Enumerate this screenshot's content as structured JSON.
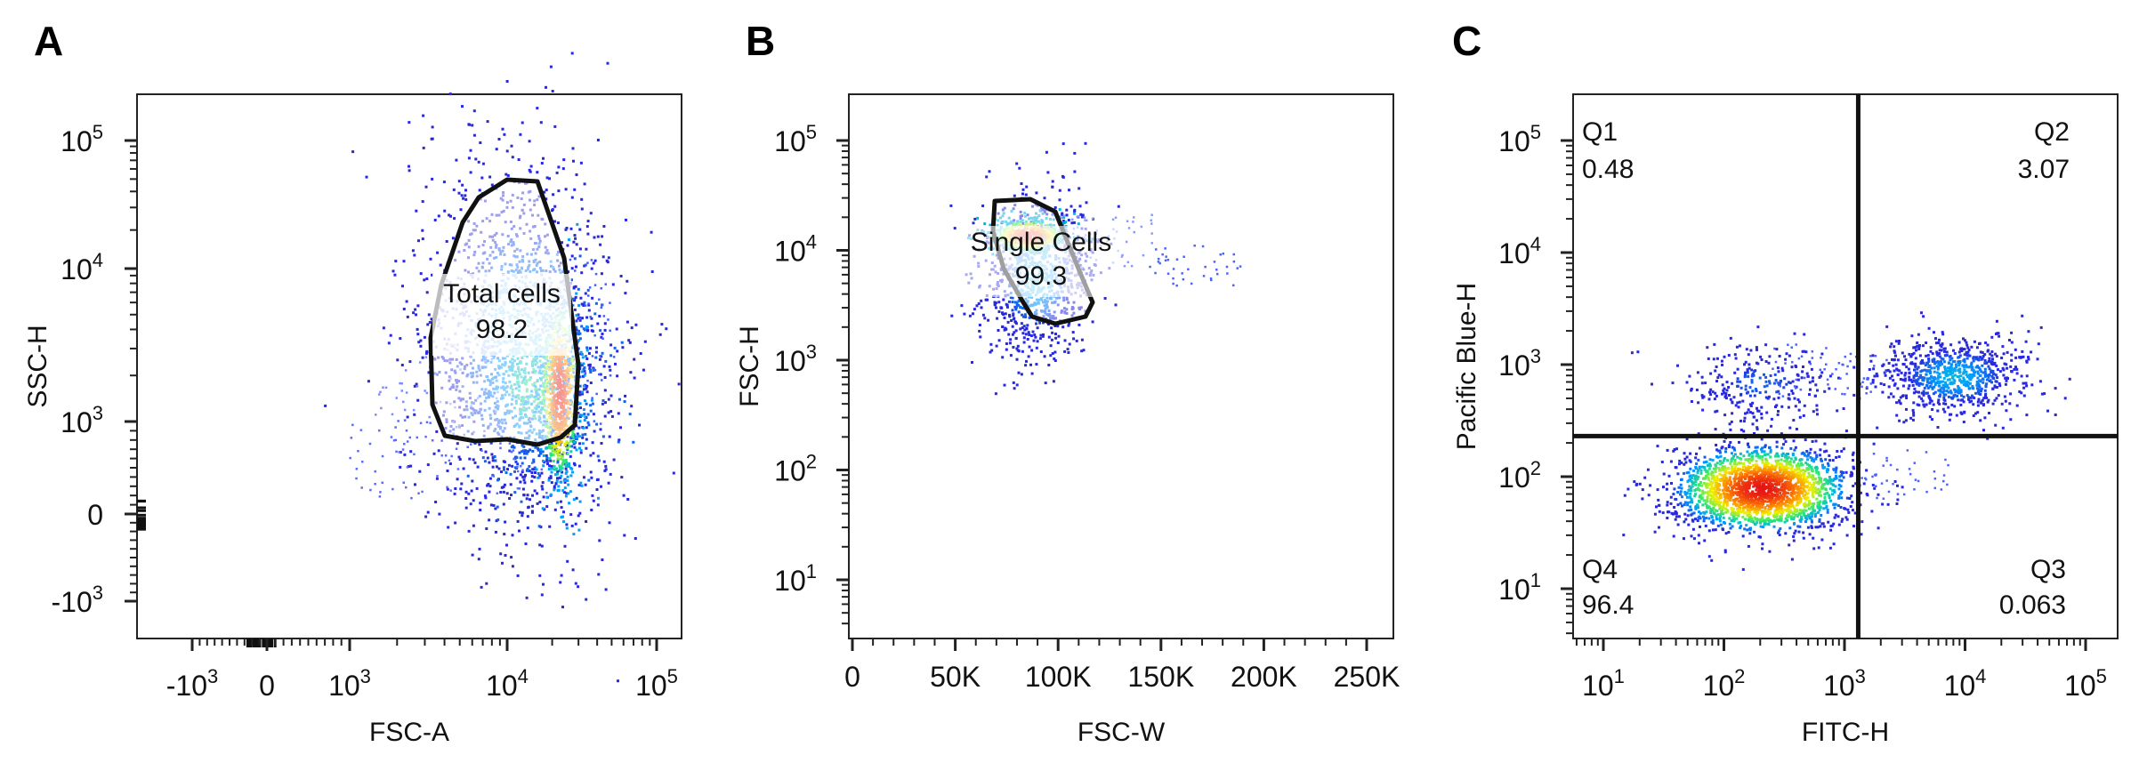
{
  "chart_data": [
    {
      "panel": "A",
      "type": "scatter",
      "xlabel": "FSC-A",
      "ylabel": "SSC-H",
      "x_scale": "biexponential",
      "y_scale": "biexponential",
      "x_ticks": [
        {
          "base": "-10",
          "exp": "3",
          "v": -1000
        },
        {
          "base": "0",
          "exp": "",
          "v": 0
        },
        {
          "base": "10",
          "exp": "3",
          "v": 1000
        },
        {
          "base": "10",
          "exp": "4",
          "v": 10000
        },
        {
          "base": "10",
          "exp": "5",
          "v": 100000
        }
      ],
      "y_ticks": [
        {
          "base": "10",
          "exp": "5",
          "v": 100000
        },
        {
          "base": "10",
          "exp": "4",
          "v": 10000
        },
        {
          "base": "10",
          "exp": "3",
          "v": 1000
        },
        {
          "base": "0",
          "exp": "",
          "v": 0
        },
        {
          "base": "-10",
          "exp": "3",
          "v": -1000
        }
      ],
      "gate": {
        "name": "Total cells",
        "percent": "98.2"
      },
      "populations": [
        {
          "x_center": 12000,
          "y_center": 3000,
          "note": "main population"
        },
        {
          "x_center": 22000,
          "y_center": 1600,
          "note": "dense core"
        }
      ]
    },
    {
      "panel": "B",
      "type": "scatter",
      "xlabel": "FSC-W",
      "ylabel": "FSC-H",
      "x_scale": "linear",
      "y_scale": "log",
      "x_ticks": [
        "0",
        "50K",
        "100K",
        "150K",
        "200K",
        "250K"
      ],
      "x_tick_values": [
        0,
        50000,
        100000,
        150000,
        200000,
        250000
      ],
      "y_ticks": [
        {
          "base": "10",
          "exp": "5",
          "v": 100000
        },
        {
          "base": "10",
          "exp": "4",
          "v": 10000
        },
        {
          "base": "10",
          "exp": "3",
          "v": 1000
        },
        {
          "base": "10",
          "exp": "2",
          "v": 100
        },
        {
          "base": "10",
          "exp": "1",
          "v": 10
        }
      ],
      "gate": {
        "name": "Single Cells",
        "percent": "99.3"
      },
      "populations": [
        {
          "x_center": 85000,
          "y_center": 12000,
          "note": "singlets"
        }
      ]
    },
    {
      "panel": "C",
      "type": "scatter",
      "xlabel": "FITC-H",
      "ylabel": "Pacific Blue-H",
      "x_scale": "log",
      "y_scale": "log",
      "x_ticks": [
        {
          "base": "10",
          "exp": "1",
          "v": 10
        },
        {
          "base": "10",
          "exp": "2",
          "v": 100
        },
        {
          "base": "10",
          "exp": "3",
          "v": 1000
        },
        {
          "base": "10",
          "exp": "4",
          "v": 10000
        },
        {
          "base": "10",
          "exp": "5",
          "v": 100000
        }
      ],
      "y_ticks": [
        {
          "base": "10",
          "exp": "5",
          "v": 100000
        },
        {
          "base": "10",
          "exp": "4",
          "v": 10000
        },
        {
          "base": "10",
          "exp": "3",
          "v": 1000
        },
        {
          "base": "10",
          "exp": "2",
          "v": 100
        },
        {
          "base": "10",
          "exp": "1",
          "v": 10
        }
      ],
      "quadrant_divider": {
        "x": 1300,
        "y": 230
      },
      "quadrants": [
        {
          "name": "Q1",
          "percent": "0.48"
        },
        {
          "name": "Q2",
          "percent": "3.07"
        },
        {
          "name": "Q3",
          "percent": "0.063"
        },
        {
          "name": "Q4",
          "percent": "96.4"
        }
      ],
      "populations": [
        {
          "x_center": 200,
          "y_center": 80,
          "note": "Q4 main population"
        },
        {
          "x_center": 8000,
          "y_center": 800,
          "note": "Q2 population"
        },
        {
          "x_center": 200,
          "y_center": 700,
          "note": "Q1 scattered"
        }
      ]
    }
  ]
}
